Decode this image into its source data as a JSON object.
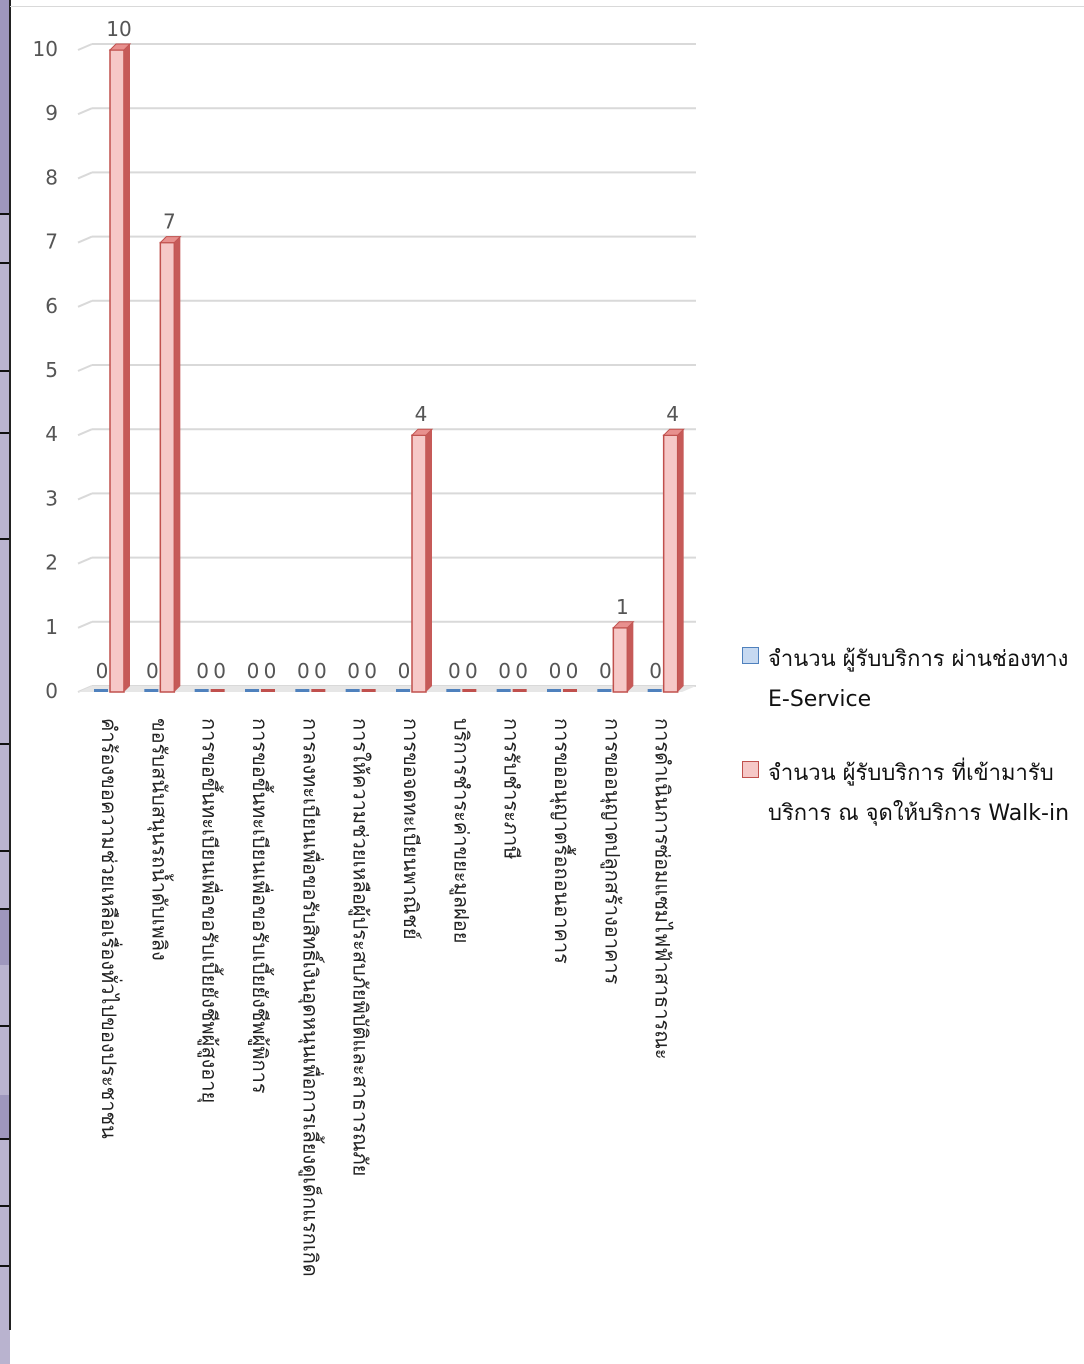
{
  "chart_data": {
    "type": "bar",
    "categories": [
      "คำร้องขอความช่วยเหลือเรื่องทั่วไปของประชาชน",
      "ขอรับสนับสนุนรถน้ำดับเพลิง",
      "การขอขึ้นทะเบียนเพื่อขอรับเบี้ยยังชีพผู้สูงอายุ",
      "การขอขึ้นทะเบียนเพื่อขอรับเบี้ยยังชีพผู้พิการ",
      "การลงทะเบียนเพื่อขอรับสิทธิ์เงินอุดหนุนเพื่อการเลี้ยงดูเด็กแรกเกิด",
      "การให้ความช่วยเหลือผู้ประสบภัยพิบัติและสาธารณภัย",
      "การขอจดทะเบียนพาณิชย์",
      "บริการชำระค่าขยะมูลฝอย",
      "การรับชำระภาษี",
      "การขออนุญาตรื้อถอนอาคาร",
      "การขออนุญาตปลูกสร้างอาคาร",
      "การดำเนินการซ่อมแซมไฟฟ้าสาธารณะ"
    ],
    "series": [
      {
        "name": "จำนวน ผู้รับบริการ ผ่านช่องทาง E-Service",
        "values": [
          0,
          0,
          0,
          0,
          0,
          0,
          0,
          0,
          0,
          0,
          0,
          0
        ],
        "color": "#4f81bd"
      },
      {
        "name": "จำนวน ผู้รับบริการ ที่เข้ามารับบริการ ณ จุดให้บริการ Walk-in",
        "values": [
          10,
          7,
          0,
          0,
          0,
          0,
          4,
          0,
          0,
          0,
          1,
          4
        ],
        "color": "#c0504d"
      }
    ],
    "ylim": [
      0,
      10
    ],
    "yticks": [
      "0",
      "1",
      "2",
      "3",
      "4",
      "5",
      "6",
      "7",
      "8",
      "9",
      "10"
    ],
    "grid": true,
    "legend_position": "right",
    "xlabel": "",
    "ylabel": ""
  }
}
